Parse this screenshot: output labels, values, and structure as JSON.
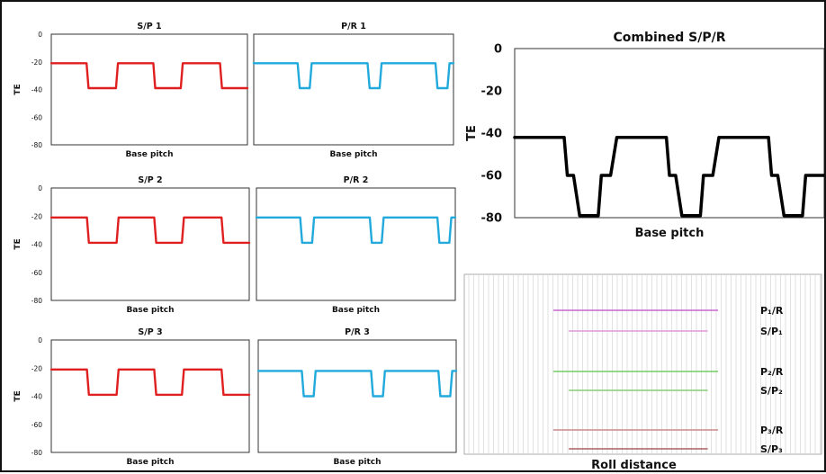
{
  "chart_data": [
    {
      "id": "sp1",
      "type": "line",
      "title": "S/P 1",
      "xlabel": "Base pitch",
      "ylabel": "TE",
      "ylim": [
        -80,
        0
      ],
      "yticks": [
        0,
        -20,
        -40,
        -60,
        -80
      ],
      "xlim": [
        0,
        1
      ],
      "series": [
        {
          "color": "#e02020",
          "x": [
            0,
            0.18,
            0.19,
            0.33,
            0.34,
            0.52,
            0.53,
            0.66,
            0.67,
            0.86,
            0.87,
            1.0
          ],
          "y": [
            -21,
            -21,
            -39,
            -39,
            -21,
            -21,
            -39,
            -39,
            -21,
            -21,
            -39,
            -39
          ]
        }
      ]
    },
    {
      "id": "pr1",
      "type": "line",
      "title": "P/R 1",
      "xlabel": "Base pitch",
      "ylabel": "",
      "ylim": [
        -80,
        0
      ],
      "yticks": [],
      "xlim": [
        0,
        1
      ],
      "series": [
        {
          "color": "#22aadd",
          "x": [
            0,
            0.22,
            0.23,
            0.28,
            0.29,
            0.57,
            0.58,
            0.63,
            0.64,
            0.91,
            0.92,
            0.97,
            0.98,
            1.0
          ],
          "y": [
            -21,
            -21,
            -39,
            -39,
            -21,
            -21,
            -39,
            -39,
            -21,
            -21,
            -39,
            -39,
            -21,
            -21
          ]
        }
      ]
    },
    {
      "id": "sp2",
      "type": "line",
      "title": "S/P 2",
      "xlabel": "Base pitch",
      "ylabel": "TE",
      "ylim": [
        -80,
        0
      ],
      "yticks": [
        0,
        -20,
        -40,
        -60,
        -80
      ],
      "xlim": [
        0,
        1
      ],
      "series": [
        {
          "color": "#e02020",
          "x": [
            0,
            0.18,
            0.19,
            0.33,
            0.34,
            0.52,
            0.53,
            0.66,
            0.67,
            0.86,
            0.87,
            1.0
          ],
          "y": [
            -21,
            -21,
            -39,
            -39,
            -21,
            -21,
            -39,
            -39,
            -21,
            -21,
            -39,
            -39
          ]
        }
      ]
    },
    {
      "id": "pr2",
      "type": "line",
      "title": "P/R 2",
      "xlabel": "Base pitch",
      "ylabel": "",
      "ylim": [
        -80,
        0
      ],
      "yticks": [],
      "xlim": [
        0,
        1
      ],
      "series": [
        {
          "color": "#22aadd",
          "x": [
            0,
            0.22,
            0.23,
            0.28,
            0.29,
            0.57,
            0.58,
            0.63,
            0.64,
            0.91,
            0.92,
            0.97,
            0.98,
            1.0
          ],
          "y": [
            -21,
            -21,
            -39,
            -39,
            -21,
            -21,
            -39,
            -39,
            -21,
            -21,
            -39,
            -39,
            -21,
            -21
          ]
        }
      ]
    },
    {
      "id": "sp3",
      "type": "line",
      "title": "S/P 3",
      "xlabel": "Base pitch",
      "ylabel": "TE",
      "ylim": [
        -80,
        0
      ],
      "yticks": [
        0,
        -20,
        -40,
        -60,
        -80
      ],
      "xlim": [
        0,
        1
      ],
      "series": [
        {
          "color": "#e02020",
          "x": [
            0,
            0.18,
            0.19,
            0.33,
            0.34,
            0.52,
            0.53,
            0.66,
            0.67,
            0.86,
            0.87,
            1.0
          ],
          "y": [
            -21,
            -21,
            -39,
            -39,
            -21,
            -21,
            -39,
            -39,
            -21,
            -21,
            -39,
            -39
          ]
        }
      ]
    },
    {
      "id": "pr3",
      "type": "line",
      "title": "P/R 3",
      "xlabel": "Base pitch",
      "ylabel": "",
      "ylim": [
        -80,
        0
      ],
      "yticks": [],
      "xlim": [
        0,
        1
      ],
      "series": [
        {
          "color": "#22aadd",
          "x": [
            0,
            0.22,
            0.23,
            0.28,
            0.29,
            0.57,
            0.58,
            0.63,
            0.64,
            0.91,
            0.92,
            0.97,
            0.98,
            1.0
          ],
          "y": [
            -22,
            -22,
            -40,
            -40,
            -22,
            -22,
            -40,
            -40,
            -22,
            -22,
            -40,
            -40,
            -22,
            -22
          ]
        }
      ]
    },
    {
      "id": "combined",
      "type": "line",
      "title": "Combined S/P/R",
      "xlabel": "Base pitch",
      "ylabel": "TE",
      "ylim": [
        -80,
        0
      ],
      "yticks": [
        0,
        -20,
        -40,
        -60,
        -80
      ],
      "xlim": [
        0,
        1
      ],
      "series": [
        {
          "color": "#000000",
          "x": [
            0,
            0.16,
            0.17,
            0.19,
            0.21,
            0.27,
            0.28,
            0.31,
            0.33,
            0.49,
            0.5,
            0.52,
            0.54,
            0.6,
            0.61,
            0.64,
            0.66,
            0.82,
            0.83,
            0.85,
            0.87,
            0.93,
            0.94,
            0.97,
            1.0
          ],
          "y": [
            -42,
            -42,
            -60,
            -60,
            -79,
            -79,
            -60,
            -60,
            -42,
            -42,
            -60,
            -60,
            -79,
            -79,
            -60,
            -60,
            -42,
            -42,
            -60,
            -60,
            -79,
            -79,
            -60,
            -60,
            -60
          ]
        }
      ]
    },
    {
      "id": "roll",
      "type": "line",
      "title": "",
      "xlabel": "Roll distance",
      "ylabel": "",
      "series": [
        {
          "name": "P₁/R",
          "color": "#c766d0",
          "x": [
            0.3,
            0.94
          ]
        },
        {
          "name": "S/P₁",
          "color": "#dd99dd",
          "x": [
            0.36,
            0.9
          ]
        },
        {
          "name": "P₂/R",
          "color": "#77cc66",
          "x": [
            0.3,
            0.94
          ]
        },
        {
          "name": "S/P₂",
          "color": "#88cc77",
          "x": [
            0.36,
            0.9
          ]
        },
        {
          "name": "P₃/R",
          "color": "#cc8888",
          "x": [
            0.3,
            0.94
          ]
        },
        {
          "name": "S/P₃",
          "color": "#a86060",
          "x": [
            0.36,
            0.9
          ]
        }
      ]
    }
  ]
}
